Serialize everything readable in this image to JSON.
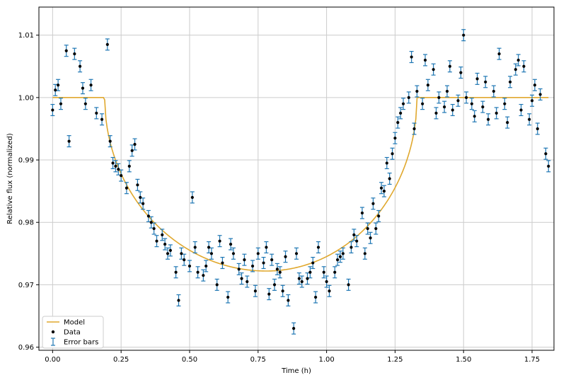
{
  "chart_data": {
    "type": "scatter",
    "title": "",
    "xlabel": "Time (h)",
    "ylabel": "Relative flux (normalized)",
    "xlim": [
      -0.05,
      1.83
    ],
    "ylim": [
      0.9595,
      1.0145
    ],
    "xticks": [
      0.0,
      0.25,
      0.5,
      0.75,
      1.0,
      1.25,
      1.5,
      1.75
    ],
    "xtick_labels": [
      "0.00",
      "0.25",
      "0.50",
      "0.75",
      "1.00",
      "1.25",
      "1.50",
      "1.75"
    ],
    "yticks": [
      0.96,
      0.97,
      0.98,
      0.99,
      1.0,
      1.01
    ],
    "ytick_labels": [
      "0.96",
      "0.97",
      "0.98",
      "0.99",
      "1.00",
      "1.01"
    ],
    "grid": true,
    "legend_position": "lower-left",
    "legend": [
      "Model",
      "Data",
      "Error bars"
    ],
    "colors": {
      "model": "#e0a82e",
      "data": "#000000",
      "errorbar": "#1f77b4",
      "grid": "#cccccc"
    },
    "transit_model": {
      "baseline": 1.0,
      "minimum_flux": 0.9722,
      "min_time": 0.78,
      "ingress_start": 0.19,
      "egress_end": 1.33
    },
    "error_bar_half_height": 0.0009,
    "series": [
      {
        "name": "Data",
        "x": [
          0.0,
          0.01,
          0.02,
          0.03,
          0.05,
          0.06,
          0.08,
          0.1,
          0.11,
          0.12,
          0.14,
          0.16,
          0.18,
          0.2,
          0.21,
          0.22,
          0.23,
          0.24,
          0.25,
          0.27,
          0.28,
          0.29,
          0.3,
          0.31,
          0.32,
          0.33,
          0.35,
          0.36,
          0.37,
          0.38,
          0.4,
          0.41,
          0.42,
          0.43,
          0.45,
          0.46,
          0.47,
          0.48,
          0.5,
          0.51,
          0.52,
          0.53,
          0.55,
          0.56,
          0.57,
          0.58,
          0.6,
          0.61,
          0.62,
          0.64,
          0.65,
          0.66,
          0.68,
          0.69,
          0.7,
          0.71,
          0.73,
          0.74,
          0.75,
          0.77,
          0.78,
          0.79,
          0.8,
          0.81,
          0.82,
          0.83,
          0.84,
          0.85,
          0.86,
          0.88,
          0.89,
          0.9,
          0.91,
          0.93,
          0.94,
          0.95,
          0.96,
          0.97,
          0.99,
          1.0,
          1.01,
          1.03,
          1.04,
          1.05,
          1.06,
          1.08,
          1.09,
          1.1,
          1.11,
          1.13,
          1.14,
          1.15,
          1.16,
          1.17,
          1.18,
          1.19,
          1.2,
          1.21,
          1.22,
          1.23,
          1.24,
          1.25,
          1.26,
          1.27,
          1.28,
          1.3,
          1.31,
          1.32,
          1.33,
          1.35,
          1.36,
          1.37,
          1.39,
          1.4,
          1.41,
          1.43,
          1.44,
          1.45,
          1.46,
          1.48,
          1.49,
          1.5,
          1.51,
          1.53,
          1.54,
          1.55,
          1.57,
          1.58,
          1.59,
          1.61,
          1.62,
          1.63,
          1.65,
          1.66,
          1.67,
          1.69,
          1.7,
          1.71,
          1.72,
          1.74,
          1.75,
          1.76,
          1.77,
          1.78,
          1.8,
          1.81
        ],
        "y": [
          0.998,
          1.0012,
          1.002,
          0.999,
          1.0075,
          0.993,
          1.007,
          1.005,
          1.0015,
          0.999,
          1.002,
          0.9975,
          0.9965,
          1.0085,
          0.993,
          0.9895,
          0.989,
          0.9885,
          0.9875,
          0.9855,
          0.989,
          0.9915,
          0.9925,
          0.986,
          0.984,
          0.983,
          0.981,
          0.98,
          0.979,
          0.977,
          0.978,
          0.9765,
          0.975,
          0.9755,
          0.972,
          0.9675,
          0.975,
          0.974,
          0.973,
          0.984,
          0.976,
          0.972,
          0.9715,
          0.973,
          0.976,
          0.975,
          0.97,
          0.977,
          0.9735,
          0.968,
          0.9765,
          0.975,
          0.9725,
          0.971,
          0.974,
          0.9705,
          0.973,
          0.969,
          0.975,
          0.9735,
          0.976,
          0.9685,
          0.974,
          0.97,
          0.9725,
          0.972,
          0.969,
          0.9745,
          0.9675,
          0.963,
          0.975,
          0.971,
          0.9705,
          0.971,
          0.972,
          0.9735,
          0.968,
          0.976,
          0.972,
          0.9705,
          0.969,
          0.972,
          0.974,
          0.9745,
          0.975,
          0.97,
          0.976,
          0.978,
          0.977,
          0.9815,
          0.975,
          0.979,
          0.9775,
          0.983,
          0.979,
          0.981,
          0.9855,
          0.985,
          0.9895,
          0.987,
          0.991,
          0.9935,
          0.996,
          0.9975,
          0.999,
          1.0,
          1.0065,
          0.995,
          1.001,
          0.999,
          1.006,
          1.002,
          1.0045,
          0.9975,
          1.0,
          0.9985,
          1.001,
          1.005,
          0.998,
          0.9995,
          1.004,
          1.01,
          1.0,
          0.999,
          0.997,
          1.003,
          0.9985,
          1.0025,
          0.9965,
          1.001,
          0.9975,
          1.007,
          0.999,
          0.996,
          1.0025,
          1.0045,
          1.006,
          0.998,
          1.005,
          0.9965,
          0.9995,
          1.002,
          0.995,
          1.0005,
          0.991,
          0.989
        ]
      }
    ]
  }
}
